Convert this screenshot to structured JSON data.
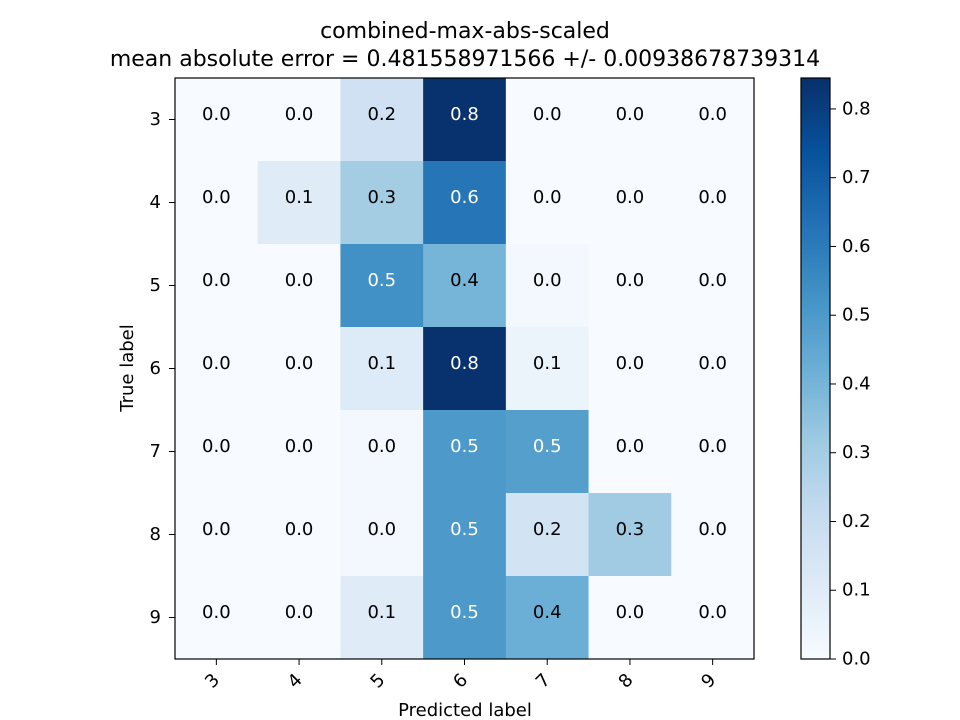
{
  "chart_data": {
    "type": "heatmap",
    "title": "combined-max-abs-scaled",
    "subtitle": "mean absolute error = 0.481558971566 +/- 0.00938678739314",
    "xlabel": "Predicted label",
    "ylabel": "True label",
    "x_categories": [
      "3",
      "4",
      "5",
      "6",
      "7",
      "8",
      "9"
    ],
    "y_categories": [
      "3",
      "4",
      "5",
      "6",
      "7",
      "8",
      "9"
    ],
    "values": [
      [
        0.0,
        0.0,
        0.2,
        0.8,
        0.0,
        0.0,
        0.0
      ],
      [
        0.0,
        0.1,
        0.3,
        0.6,
        0.0,
        0.0,
        0.0
      ],
      [
        0.0,
        0.0,
        0.5,
        0.4,
        0.0,
        0.0,
        0.0
      ],
      [
        0.0,
        0.0,
        0.1,
        0.8,
        0.1,
        0.0,
        0.0
      ],
      [
        0.0,
        0.0,
        0.0,
        0.5,
        0.5,
        0.0,
        0.0
      ],
      [
        0.0,
        0.0,
        0.0,
        0.5,
        0.2,
        0.3,
        0.0
      ],
      [
        0.0,
        0.0,
        0.1,
        0.5,
        0.4,
        0.0,
        0.0
      ]
    ],
    "underlying_values": [
      [
        0.0,
        0.0,
        0.17,
        0.84,
        0.0,
        0.0,
        0.0
      ],
      [
        0.0,
        0.1,
        0.3,
        0.62,
        0.0,
        0.0,
        0.0
      ],
      [
        0.0,
        0.0,
        0.53,
        0.4,
        0.02,
        0.0,
        0.0
      ],
      [
        0.0,
        0.0,
        0.11,
        0.84,
        0.05,
        0.0,
        0.0
      ],
      [
        0.0,
        0.0,
        0.02,
        0.5,
        0.48,
        0.0,
        0.0
      ],
      [
        0.0,
        0.0,
        0.02,
        0.5,
        0.16,
        0.31,
        0.0
      ],
      [
        0.0,
        0.0,
        0.1,
        0.5,
        0.42,
        0.0,
        0.0
      ]
    ],
    "colorbar": {
      "min": 0.0,
      "max": 0.845,
      "ticks": [
        "0.0",
        "0.1",
        "0.2",
        "0.3",
        "0.4",
        "0.5",
        "0.6",
        "0.7",
        "0.8"
      ],
      "colormap": "Blues",
      "low_color": "#f7fbff",
      "high_color": "#08306b"
    },
    "grid": false
  }
}
